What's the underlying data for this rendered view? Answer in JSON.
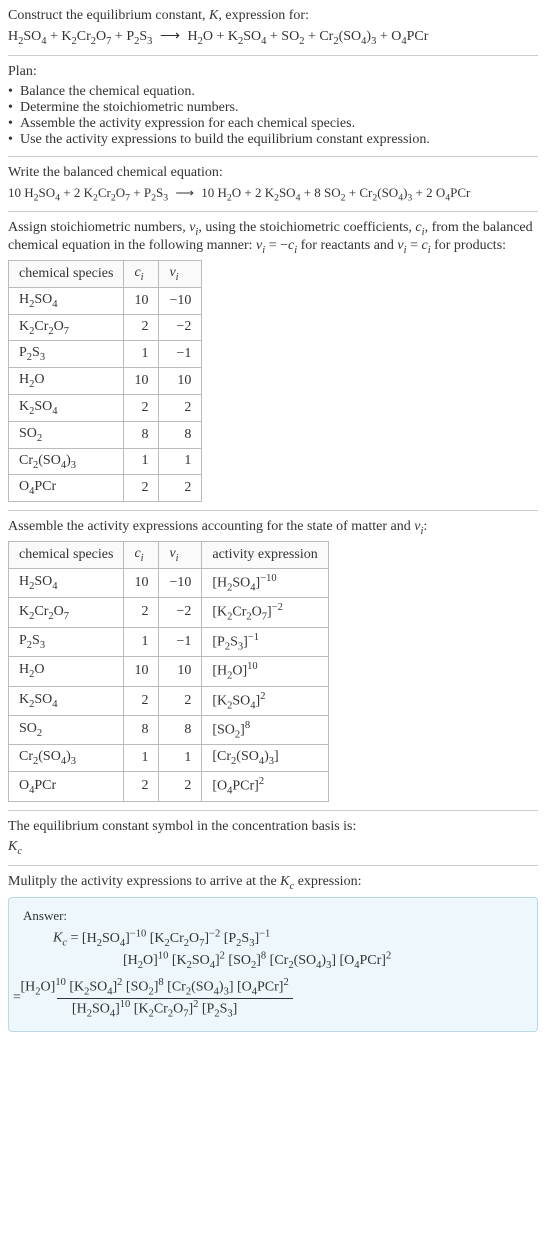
{
  "intro": {
    "line1_prefix": "Construct the equilibrium constant, ",
    "line1_K": "K",
    "line1_suffix": ", expression for:"
  },
  "unbalanced": {
    "reactants": [
      "H₂SO₄",
      "K₂Cr₂O₇",
      "P₂S₃"
    ],
    "products": [
      "H₂O",
      "K₂SO₄",
      "SO₂",
      "Cr₂(SO₄)₃",
      "O₄PCr"
    ]
  },
  "plan": {
    "title": "Plan:",
    "items": [
      "Balance the chemical equation.",
      "Determine the stoichiometric numbers.",
      "Assemble the activity expression for each chemical species.",
      "Use the activity expressions to build the equilibrium constant expression."
    ]
  },
  "balanced_title": "Write the balanced chemical equation:",
  "balanced": {
    "reactants": [
      {
        "coef": "10",
        "sp": "H₂SO₄"
      },
      {
        "coef": "2",
        "sp": "K₂Cr₂O₇"
      },
      {
        "coef": "",
        "sp": "P₂S₃"
      }
    ],
    "products": [
      {
        "coef": "10",
        "sp": "H₂O"
      },
      {
        "coef": "2",
        "sp": "K₂SO₄"
      },
      {
        "coef": "8",
        "sp": "SO₂"
      },
      {
        "coef": "",
        "sp": "Cr₂(SO₄)₃"
      },
      {
        "coef": "2",
        "sp": "O₄PCr"
      }
    ]
  },
  "stoich_intro": {
    "a": "Assign stoichiometric numbers, ",
    "nu": "ν",
    "sub_i": "i",
    "b": ", using the stoichiometric coefficients, ",
    "c": "c",
    "d": ", from the balanced chemical equation in the following manner: ",
    "rel_reac": " = −",
    "e": " for reactants and ",
    "rel_prod": " = ",
    "f": " for products:"
  },
  "table1": {
    "headers": [
      "chemical species",
      "cᵢ",
      "νᵢ"
    ],
    "rows": [
      {
        "sp": "H₂SO₄",
        "c": "10",
        "nu": "−10"
      },
      {
        "sp": "K₂Cr₂O₇",
        "c": "2",
        "nu": "−2"
      },
      {
        "sp": "P₂S₃",
        "c": "1",
        "nu": "−1"
      },
      {
        "sp": "H₂O",
        "c": "10",
        "nu": "10"
      },
      {
        "sp": "K₂SO₄",
        "c": "2",
        "nu": "2"
      },
      {
        "sp": "SO₂",
        "c": "8",
        "nu": "8"
      },
      {
        "sp": "Cr₂(SO₄)₃",
        "c": "1",
        "nu": "1"
      },
      {
        "sp": "O₄PCr",
        "c": "2",
        "nu": "2"
      }
    ]
  },
  "activity_intro": {
    "a": "Assemble the activity expressions accounting for the state of matter and ",
    "nu": "ν",
    "sub_i": "i",
    "b": ":"
  },
  "table2": {
    "headers": [
      "chemical species",
      "cᵢ",
      "νᵢ",
      "activity expression"
    ],
    "rows": [
      {
        "sp": "H₂SO₄",
        "c": "10",
        "nu": "−10",
        "act_base": "[H₂SO₄]",
        "act_exp": "−10"
      },
      {
        "sp": "K₂Cr₂O₇",
        "c": "2",
        "nu": "−2",
        "act_base": "[K₂Cr₂O₇]",
        "act_exp": "−2"
      },
      {
        "sp": "P₂S₃",
        "c": "1",
        "nu": "−1",
        "act_base": "[P₂S₃]",
        "act_exp": "−1"
      },
      {
        "sp": "H₂O",
        "c": "10",
        "nu": "10",
        "act_base": "[H₂O]",
        "act_exp": "10"
      },
      {
        "sp": "K₂SO₄",
        "c": "2",
        "nu": "2",
        "act_base": "[K₂SO₄]",
        "act_exp": "2"
      },
      {
        "sp": "SO₂",
        "c": "8",
        "nu": "8",
        "act_base": "[SO₂]",
        "act_exp": "8"
      },
      {
        "sp": "Cr₂(SO₄)₃",
        "c": "1",
        "nu": "1",
        "act_base": "[Cr₂(SO₄)₃]",
        "act_exp": ""
      },
      {
        "sp": "O₄PCr",
        "c": "2",
        "nu": "2",
        "act_base": "[O₄PCr]",
        "act_exp": "2"
      }
    ]
  },
  "symbol_intro": "The equilibrium constant symbol in the concentration basis is:",
  "Kc_label": "K",
  "Kc_sub": "c",
  "multiply_intro": {
    "a": "Mulitply the activity expressions to arrive at the ",
    "b": " expression:"
  },
  "answer": {
    "label": "Answer:",
    "line1": [
      {
        "base": "[H₂SO₄]",
        "exp": "−10"
      },
      {
        "base": "[K₂Cr₂O₇]",
        "exp": "−2"
      },
      {
        "base": "[P₂S₃]",
        "exp": "−1"
      }
    ],
    "line2": [
      {
        "base": "[H₂O]",
        "exp": "10"
      },
      {
        "base": "[K₂SO₄]",
        "exp": "2"
      },
      {
        "base": "[SO₂]",
        "exp": "8"
      },
      {
        "base": "[Cr₂(SO₄)₃]",
        "exp": ""
      },
      {
        "base": "[O₄PCr]",
        "exp": "2"
      }
    ],
    "frac_num": [
      {
        "base": "[H₂O]",
        "exp": "10"
      },
      {
        "base": "[K₂SO₄]",
        "exp": "2"
      },
      {
        "base": "[SO₂]",
        "exp": "8"
      },
      {
        "base": "[Cr₂(SO₄)₃]",
        "exp": ""
      },
      {
        "base": "[O₄PCr]",
        "exp": "2"
      }
    ],
    "frac_den": [
      {
        "base": "[H₂SO₄]",
        "exp": "10"
      },
      {
        "base": "[K₂Cr₂O₇]",
        "exp": "2"
      },
      {
        "base": "[P₂S₃]",
        "exp": ""
      }
    ]
  }
}
